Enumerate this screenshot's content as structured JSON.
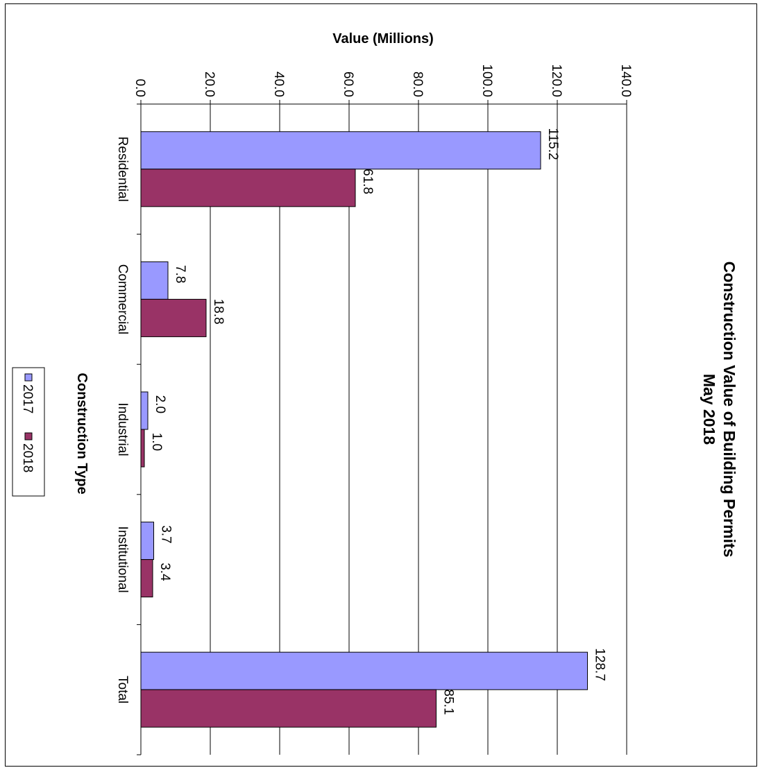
{
  "chart_data": {
    "type": "bar",
    "orientation": "rotated-90-clockwise",
    "title": "Construction Value of Building Permits",
    "subtitle": "May 2018",
    "xlabel": "Construction Type",
    "ylabel": "Value (Millions)",
    "categories": [
      "Residential",
      "Commercial",
      "Industrial",
      "Institutional",
      "Total"
    ],
    "series": [
      {
        "name": "2017",
        "values": [
          115.2,
          7.8,
          2.0,
          3.7,
          128.7
        ],
        "labels": [
          "115.2",
          "7.8",
          "2.0",
          "3.7",
          "128.7"
        ],
        "color": "#9999ff"
      },
      {
        "name": "2018",
        "values": [
          61.8,
          18.8,
          1.0,
          3.4,
          85.1
        ],
        "labels": [
          "61.8",
          "18.8",
          "1.0",
          "3.4",
          "85.1"
        ],
        "color": "#993366"
      }
    ],
    "ylim": [
      0,
      140
    ],
    "yticks": [
      0,
      20,
      40,
      60,
      80,
      100,
      120,
      140
    ],
    "ytick_labels": [
      "0.0",
      "20.0",
      "40.0",
      "60.0",
      "80.0",
      "100.0",
      "120.0",
      "140.0"
    ],
    "grid": true,
    "legend": "left"
  }
}
